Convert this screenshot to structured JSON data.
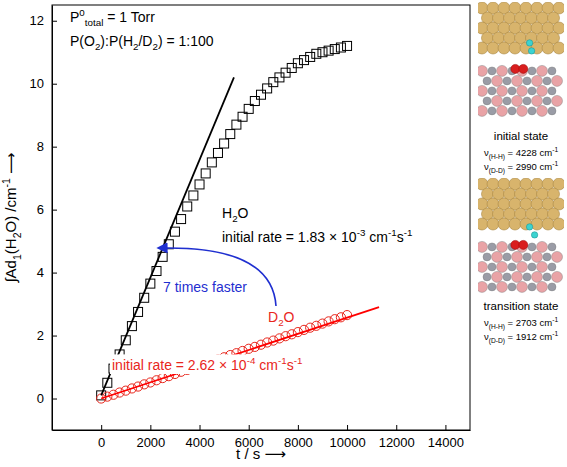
{
  "chart_data": {
    "type": "scatter",
    "x_label": {
      "parts": [
        "t / s  ⟶"
      ]
    },
    "y_label": {
      "parts": [
        "∫Ad",
        {
          "sub": "1"
        },
        "(H",
        {
          "sub": "2"
        },
        "O) /cm",
        {
          "sup": "-1"
        },
        "  ⟶"
      ]
    },
    "xlim": [
      -2000,
      15000
    ],
    "ylim": [
      -1,
      12.5
    ],
    "xticks": [
      0,
      2000,
      4000,
      6000,
      8000,
      10000,
      12000,
      14000
    ],
    "yticks": [
      0,
      2,
      4,
      6,
      8,
      10,
      12
    ],
    "grid": false,
    "series": [
      {
        "type": "scatter",
        "marker": "square",
        "color": "#000000",
        "x": [
          0,
          250,
          500,
          750,
          1000,
          1250,
          1500,
          1750,
          2000,
          2250,
          2500,
          2750,
          3000,
          3250,
          3500,
          3750,
          4000,
          4250,
          4500,
          4750,
          5000,
          5250,
          5500,
          5750,
          6000,
          6250,
          6500,
          6750,
          7000,
          7250,
          7500,
          7750,
          8000,
          8250,
          8500,
          8750,
          9000,
          9250,
          9500,
          9750,
          10000
        ],
        "values": [
          0.1,
          0.5,
          0.95,
          1.4,
          1.85,
          2.3,
          2.75,
          3.2,
          3.65,
          4.05,
          4.5,
          4.9,
          5.3,
          5.7,
          6.1,
          6.45,
          6.8,
          7.15,
          7.5,
          7.8,
          8.1,
          8.4,
          8.7,
          8.95,
          9.2,
          9.45,
          9.65,
          9.85,
          10.05,
          10.2,
          10.35,
          10.5,
          10.65,
          10.75,
          10.85,
          10.95,
          11.0,
          11.05,
          11.1,
          11.15,
          11.2
        ]
      },
      {
        "type": "scatter",
        "marker": "circle",
        "color": "#e8261c",
        "x": [
          0,
          250,
          500,
          750,
          1000,
          1250,
          1500,
          1750,
          2000,
          2250,
          2500,
          2750,
          3000,
          3250,
          3500,
          3750,
          4000,
          4250,
          4500,
          4750,
          5000,
          5250,
          5500,
          5750,
          6000,
          6250,
          6500,
          6750,
          7000,
          7250,
          7500,
          7750,
          8000,
          8250,
          8500,
          8750,
          9000,
          9250,
          9500,
          9750,
          10000
        ],
        "values": [
          0.0,
          0.06,
          0.12,
          0.19,
          0.25,
          0.32,
          0.38,
          0.45,
          0.51,
          0.58,
          0.65,
          0.71,
          0.78,
          0.85,
          0.91,
          0.98,
          1.05,
          1.11,
          1.18,
          1.24,
          1.31,
          1.38,
          1.44,
          1.51,
          1.58,
          1.64,
          1.71,
          1.78,
          1.84,
          1.91,
          1.98,
          2.04,
          2.11,
          2.18,
          2.25,
          2.31,
          2.38,
          2.45,
          2.52,
          2.58,
          2.65
        ]
      },
      {
        "type": "line",
        "line_style": "solid",
        "color": "#000000",
        "x": [
          0,
          5400
        ],
        "values": [
          0.1,
          10.2
        ]
      },
      {
        "type": "line",
        "line_style": "solid",
        "color": "#ff0000",
        "x": [
          0,
          11300
        ],
        "values": [
          0.0,
          2.9
        ]
      }
    ],
    "annotations": [
      {
        "color": "#000000",
        "parts": [
          "P",
          {
            "sup": "0"
          },
          {
            "sub": "total"
          },
          " = 1 Torr"
        ]
      },
      {
        "color": "#000000",
        "parts": [
          "P(O",
          {
            "sub": "2"
          },
          "):P(H",
          {
            "sub": "2"
          },
          "/D",
          {
            "sub": "2"
          },
          ") = 1:100"
        ]
      },
      {
        "color": "#000000",
        "parts": [
          "H",
          {
            "sub": "2"
          },
          "O"
        ]
      },
      {
        "color": "#000000",
        "parts": [
          "initial rate = 1.83 × 10",
          {
            "sup": "-3"
          },
          " cm",
          {
            "sup": "-1"
          },
          "s",
          {
            "sup": "-1"
          }
        ]
      },
      {
        "color": "#1f2fd0",
        "parts": [
          "7 times faster"
        ]
      },
      {
        "color": "#e8261c",
        "parts": [
          "D",
          {
            "sub": "2"
          },
          "O"
        ]
      },
      {
        "color": "#e8261c",
        "parts": [
          "initial rate = 2.62 × 10",
          {
            "sup": "-4"
          },
          " cm",
          {
            "sup": "-1"
          },
          "s",
          {
            "sup": "-1"
          }
        ]
      }
    ],
    "structures": [
      {
        "label": "initial state",
        "lines": [
          [
            "ν",
            {
              "sub": "(H-H)"
            },
            " = 4228 cm",
            {
              "sup": "-1"
            }
          ],
          [
            "ν",
            {
              "sub": "(D-D)"
            },
            " = 2990 cm",
            {
              "sup": "-1"
            }
          ]
        ]
      },
      {
        "label": "transition state",
        "lines": [
          [
            "ν",
            {
              "sub": "(H-H)"
            },
            " = 2703 cm",
            {
              "sup": "-1"
            }
          ],
          [
            "ν",
            {
              "sub": "(D-D)"
            },
            " = 1912 cm",
            {
              "sup": "-1"
            }
          ]
        ]
      }
    ]
  }
}
